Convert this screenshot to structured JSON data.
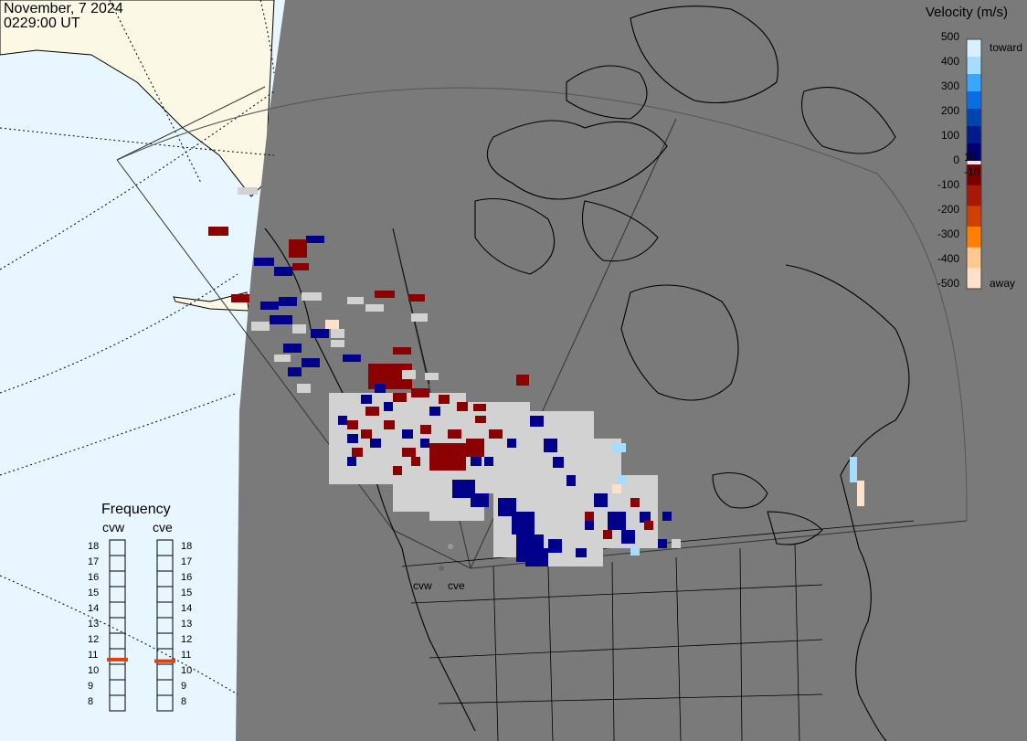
{
  "header": {
    "date": "November, 7 2024",
    "time": "0229:00 UT"
  },
  "colorbar": {
    "title": "Velocity (m/s)",
    "ticks": [
      "500",
      "400",
      "300",
      "200",
      "100",
      "0",
      "-100",
      "-200",
      "-300",
      "-400",
      "-500"
    ],
    "extra_labels": {
      "pos": "10",
      "neg": "-10"
    },
    "toward_label": "toward",
    "away_label": "away",
    "colors": [
      "#d6f0ff",
      "#a6dcff",
      "#3aa6ff",
      "#0a6ee0",
      "#0044b0",
      "#001c8c",
      "#000070",
      "#e8e8e8",
      "#7a0000",
      "#a81808",
      "#d04000",
      "#ff8000",
      "#ffc890",
      "#ffe0c8"
    ]
  },
  "frequency": {
    "title": "Frequency",
    "radars": [
      "cvw",
      "cve"
    ],
    "scale": [
      "18",
      "17",
      "16",
      "15",
      "14",
      "13",
      "12",
      "11",
      "10",
      "9",
      "8"
    ],
    "values_mhz": [
      10.8,
      10.7
    ],
    "marker_color": "#e0400a"
  },
  "sites": {
    "west": "cvw",
    "east": "cve"
  },
  "map": {
    "land_color": "#7a7a7a",
    "ocean_color": "#e8f6ff",
    "night_land_color": "#fbf9e6",
    "gray_scatter_color": "#d2d2d2"
  }
}
